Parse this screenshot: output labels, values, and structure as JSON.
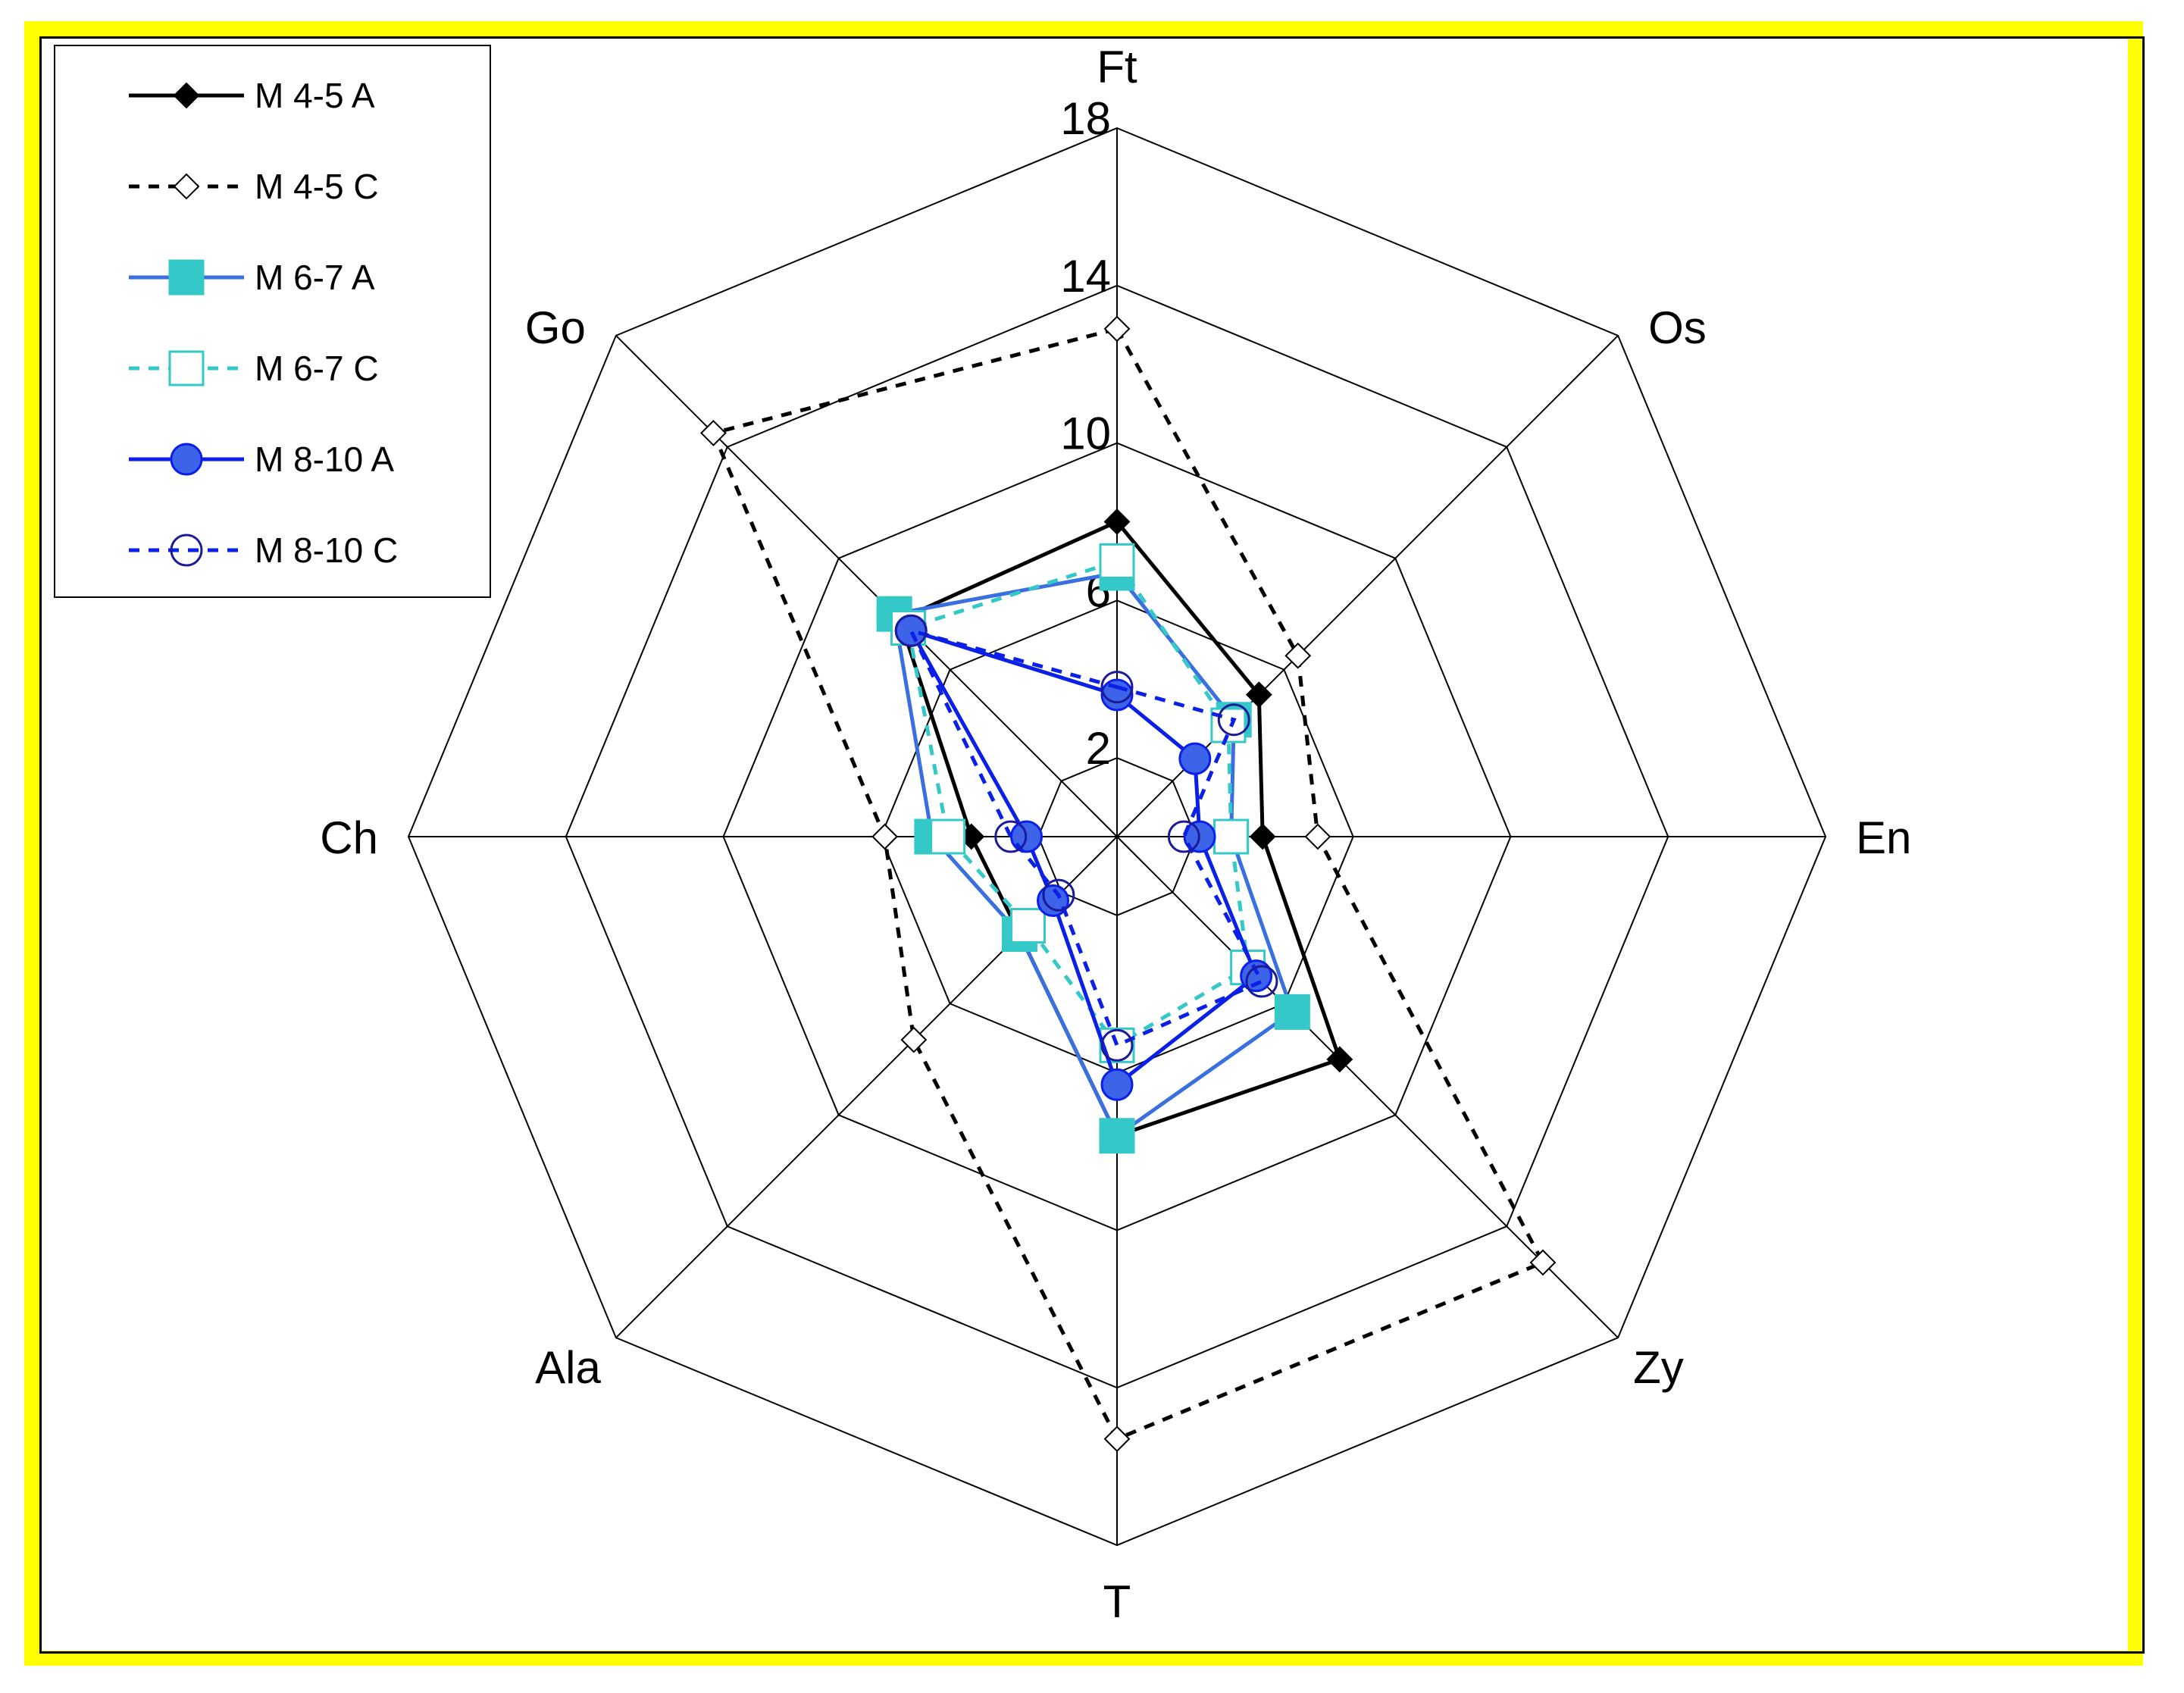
{
  "chart_data": {
    "type": "radar",
    "axes": [
      "Ft",
      "Os",
      "En",
      "Zy",
      "T",
      "Ala",
      "Ch",
      "Go"
    ],
    "rlim": [
      0,
      18
    ],
    "ticks": [
      2,
      6,
      10,
      14,
      18
    ],
    "tick_labels": [
      "2",
      "6",
      "10",
      "14",
      "18"
    ],
    "grid": true,
    "legend_position": "top-left",
    "series": [
      {
        "name": "M 4-5 A",
        "values": [
          8.0,
          5.1,
          3.7,
          8.0,
          7.6,
          3.5,
          3.7,
          7.8
        ],
        "color": "#000000",
        "dash": "solid",
        "marker": "diamond",
        "filled": true
      },
      {
        "name": "M 4-5 C",
        "values": [
          12.9,
          6.5,
          5.1,
          15.3,
          15.3,
          7.3,
          5.9,
          14.5
        ],
        "color": "#000000",
        "dash": "dashed",
        "marker": "diamond",
        "filled": false
      },
      {
        "name": "M 6-7 A",
        "values": [
          6.7,
          4.2,
          2.9,
          6.3,
          7.6,
          3.5,
          4.7,
          8.0
        ],
        "color": "#3a6fe0",
        "dash": "solid",
        "marker": "square",
        "filled": true
      },
      {
        "name": "M 6-7 C",
        "values": [
          7.0,
          4.0,
          2.9,
          4.7,
          5.3,
          3.2,
          4.3,
          7.5
        ],
        "color": "#35c8c8",
        "dash": "dashed",
        "marker": "square",
        "filled": false
      },
      {
        "name": "M 8-10 A",
        "values": [
          3.6,
          2.8,
          2.1,
          5.0,
          6.3,
          2.3,
          2.3,
          7.4
        ],
        "color": "#0a1fe8",
        "dash": "solid",
        "marker": "circle",
        "filled": true
      },
      {
        "name": "M 8-10 C",
        "values": [
          3.8,
          4.2,
          1.7,
          5.2,
          5.3,
          2.1,
          2.7,
          7.4
        ],
        "color": "#0a1fe8",
        "dash": "dashed",
        "marker": "circle",
        "filled": false
      }
    ]
  }
}
